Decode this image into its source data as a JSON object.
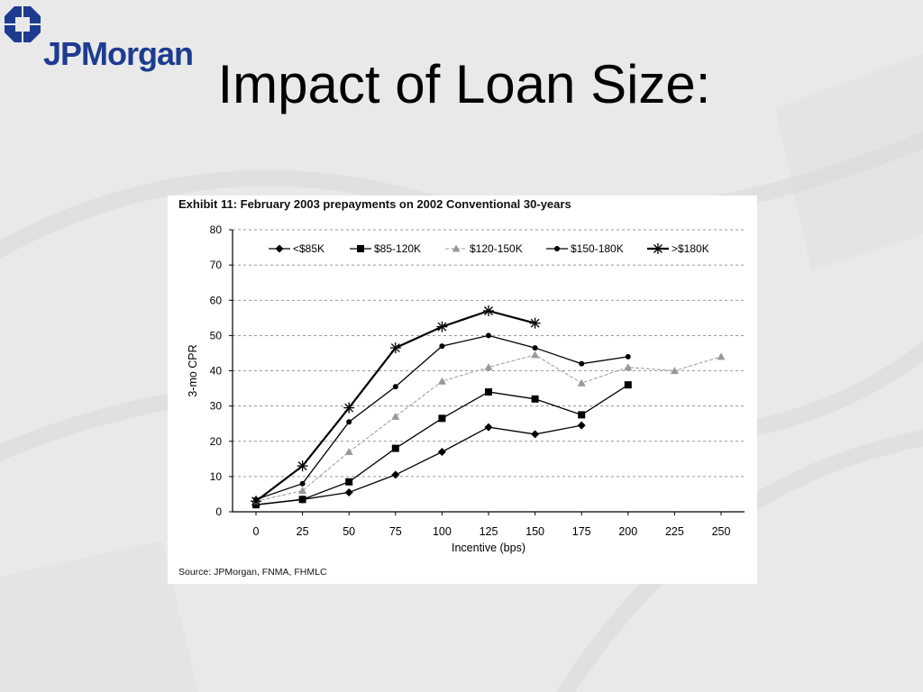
{
  "logo": {
    "text": "JPMorgan",
    "brand_color": "#1e3c8f"
  },
  "slide": {
    "title": "Impact of Loan Size:"
  },
  "exhibit": {
    "title": "Exhibit 11:  February 2003 prepayments on 2002 Conventional 30-years",
    "source": "Source: JPMorgan, FNMA, FHMLC"
  },
  "chart_data": {
    "type": "line",
    "title": "Exhibit 11:  February 2003 prepayments on 2002 Conventional 30-years",
    "xlabel": "Incentive (bps)",
    "ylabel": "3-mo CPR",
    "xlim": [
      0,
      250
    ],
    "ylim": [
      0,
      80
    ],
    "x_ticks": [
      0,
      25,
      50,
      75,
      100,
      125,
      150,
      175,
      200,
      225,
      250
    ],
    "y_ticks": [
      0,
      10,
      20,
      30,
      40,
      50,
      60,
      70,
      80
    ],
    "grid": "horizontal dashed",
    "legend_position": "top",
    "series": [
      {
        "name": "<$85K",
        "marker": "diamond",
        "color": "#000000",
        "x": [
          0,
          25,
          50,
          75,
          100,
          125,
          150,
          175
        ],
        "y": [
          2,
          3.5,
          5.5,
          10.5,
          17,
          24,
          22,
          24.5
        ]
      },
      {
        "name": "$85-120K",
        "marker": "square",
        "color": "#000000",
        "x": [
          0,
          25,
          50,
          75,
          100,
          125,
          150,
          175,
          200
        ],
        "y": [
          2,
          3.5,
          8.5,
          18,
          26.5,
          34,
          32,
          27.5,
          36
        ]
      },
      {
        "name": "$120-150K",
        "marker": "triangle",
        "color": "#999999",
        "x": [
          0,
          25,
          50,
          75,
          100,
          125,
          150,
          175,
          200,
          225,
          250
        ],
        "y": [
          3,
          6,
          17,
          27,
          37,
          41,
          44.5,
          36.5,
          41,
          40,
          44
        ]
      },
      {
        "name": "$150-180K",
        "marker": "dot",
        "color": "#000000",
        "x": [
          0,
          25,
          50,
          75,
          100,
          125,
          150,
          175,
          200
        ],
        "y": [
          3.5,
          8,
          25.5,
          35.5,
          47,
          50,
          46.5,
          42,
          44
        ]
      },
      {
        "name": ">$180K",
        "marker": "asterisk",
        "color": "#000000",
        "x": [
          0,
          25,
          50,
          75,
          100,
          125,
          150
        ],
        "y": [
          3,
          13,
          29.5,
          46.5,
          52.5,
          57,
          53.5
        ]
      }
    ]
  }
}
